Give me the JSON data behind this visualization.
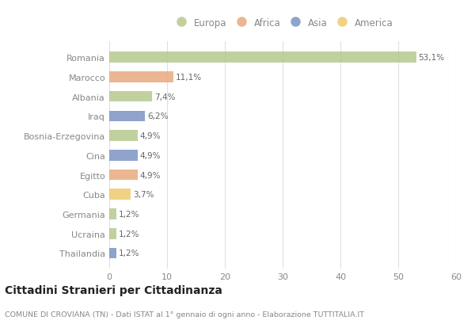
{
  "categories": [
    "Romania",
    "Marocco",
    "Albania",
    "Iraq",
    "Bosnia-Erzegovina",
    "Cina",
    "Egitto",
    "Cuba",
    "Germania",
    "Ucraina",
    "Thailandia"
  ],
  "values": [
    53.1,
    11.1,
    7.4,
    6.2,
    4.9,
    4.9,
    4.9,
    3.7,
    1.2,
    1.2,
    1.2
  ],
  "labels": [
    "53,1%",
    "11,1%",
    "7,4%",
    "6,2%",
    "4,9%",
    "4,9%",
    "4,9%",
    "3,7%",
    "1,2%",
    "1,2%",
    "1,2%"
  ],
  "continents": [
    "Europa",
    "Africa",
    "Europa",
    "Asia",
    "Europa",
    "Asia",
    "Africa",
    "America",
    "Europa",
    "Europa",
    "Asia"
  ],
  "colors": {
    "Europa": "#b5c98e",
    "Africa": "#e8a97e",
    "Asia": "#7b93c4",
    "America": "#f0c96e"
  },
  "legend_order": [
    "Europa",
    "Africa",
    "Asia",
    "America"
  ],
  "title": "Cittadini Stranieri per Cittadinanza",
  "subtitle": "COMUNE DI CROVIANA (TN) - Dati ISTAT al 1° gennaio di ogni anno - Elaborazione TUTTITALIA.IT",
  "xlim": [
    0,
    60
  ],
  "xticks": [
    0,
    10,
    20,
    30,
    40,
    50,
    60
  ],
  "background_color": "#ffffff",
  "grid_color": "#e0e0e0",
  "text_color": "#888888",
  "label_color": "#666666"
}
